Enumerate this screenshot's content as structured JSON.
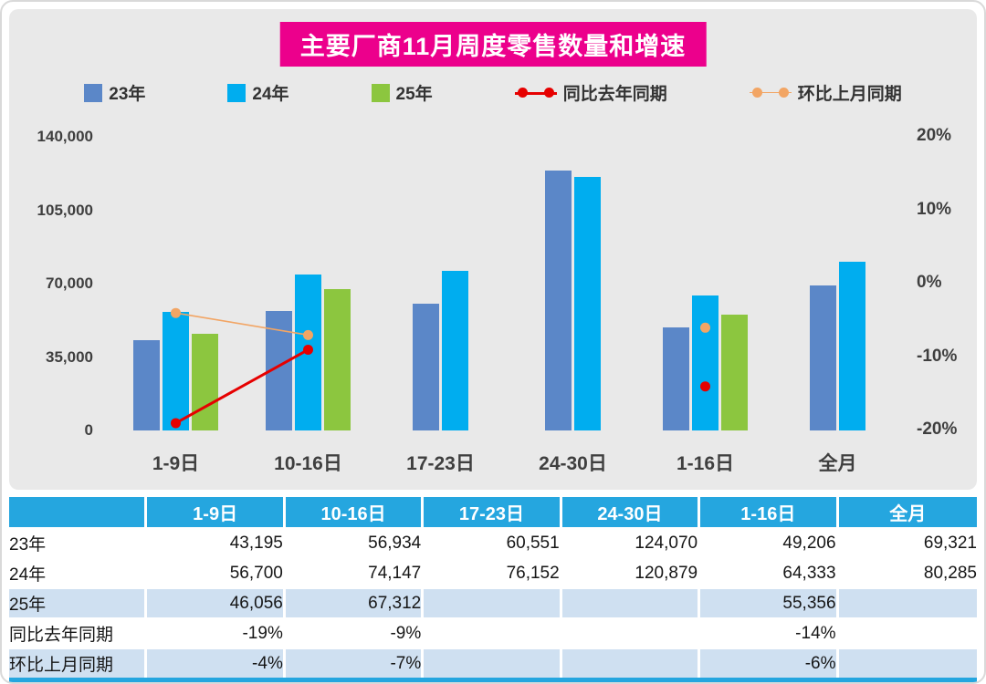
{
  "title": "主要厂商11月周度零售数量和增速",
  "colors": {
    "title_bg": "#EC008C",
    "chart_bg": "#E9E9E9",
    "bar_23": "#5B87C8",
    "bar_24": "#00ADEF",
    "bar_25": "#8CC63F",
    "line_yoy": "#E60000",
    "line_mom": "#F2A564",
    "table_header_bg": "#25A6DF",
    "row_tint": "#CFE0F1",
    "axis_text": "#3F3F3F"
  },
  "legend": [
    {
      "label": "23年",
      "swatch": "square",
      "color": "#5B87C8",
      "icon": "legend-swatch-23-square"
    },
    {
      "label": "24年",
      "swatch": "square",
      "color": "#00ADEF",
      "icon": "legend-swatch-24-square"
    },
    {
      "label": "25年",
      "swatch": "square",
      "color": "#8CC63F",
      "icon": "legend-swatch-25-square"
    },
    {
      "label": "同比去年同期",
      "swatch": "line",
      "color": "#E60000",
      "thick": true,
      "icon": "legend-yoy-line-dots-icon"
    },
    {
      "label": "环比上月同期",
      "swatch": "line",
      "color": "#F2A564",
      "thick": false,
      "icon": "legend-mom-line-dots-icon"
    }
  ],
  "chart_data": {
    "type": "bar",
    "title": "主要厂商11月周度零售数量和增速",
    "categories": [
      "1-9日",
      "10-16日",
      "17-23日",
      "24-30日",
      "1-16日",
      "全月"
    ],
    "bar_series": [
      {
        "name": "23年",
        "color": "#5B87C8",
        "values": [
          43195,
          56934,
          60551,
          124070,
          49206,
          69321
        ]
      },
      {
        "name": "24年",
        "color": "#00ADEF",
        "values": [
          56700,
          74147,
          76152,
          120879,
          64333,
          80285
        ]
      },
      {
        "name": "25年",
        "color": "#8CC63F",
        "values": [
          46056,
          67312,
          null,
          null,
          55356,
          null
        ]
      }
    ],
    "line_series": [
      {
        "name": "同比去年同期",
        "color": "#E60000",
        "values": [
          -19,
          -9,
          null,
          null,
          -14,
          null
        ]
      },
      {
        "name": "环比上月同期",
        "color": "#F2A564",
        "values": [
          -4,
          -7,
          null,
          null,
          -6,
          null
        ]
      }
    ],
    "left_axis": {
      "min": 0,
      "max": 140000,
      "ticks": [
        0,
        35000,
        70000,
        105000,
        140000
      ],
      "labels": [
        "0",
        "35,000",
        "70,000",
        "105,000",
        "140,000"
      ]
    },
    "right_axis": {
      "min": -20,
      "max": 20,
      "ticks": [
        -20,
        -10,
        0,
        10,
        20
      ],
      "labels": [
        "-20%",
        "-10%",
        "0%",
        "10%",
        "20%"
      ]
    },
    "grid": false,
    "legend_position": "top"
  },
  "table": {
    "header": [
      "",
      "1-9日",
      "10-16日",
      "17-23日",
      "24-30日",
      "1-16日",
      "全月"
    ],
    "rows": [
      {
        "label": "23年",
        "tint": false,
        "cells": [
          "43,195",
          "56,934",
          "60,551",
          "124,070",
          "49,206",
          "69,321"
        ]
      },
      {
        "label": "24年",
        "tint": false,
        "cells": [
          "56,700",
          "74,147",
          "76,152",
          "120,879",
          "64,333",
          "80,285"
        ]
      },
      {
        "label": "25年",
        "tint": true,
        "cells": [
          "46,056",
          "67,312",
          "",
          "",
          "55,356",
          ""
        ]
      },
      {
        "label": "同比去年同期",
        "tint": false,
        "cells": [
          "-19%",
          "-9%",
          "",
          "",
          "-14%",
          ""
        ]
      },
      {
        "label": "环比上月同期",
        "tint": true,
        "cells": [
          "-4%",
          "-7%",
          "",
          "",
          "-6%",
          ""
        ]
      }
    ]
  }
}
